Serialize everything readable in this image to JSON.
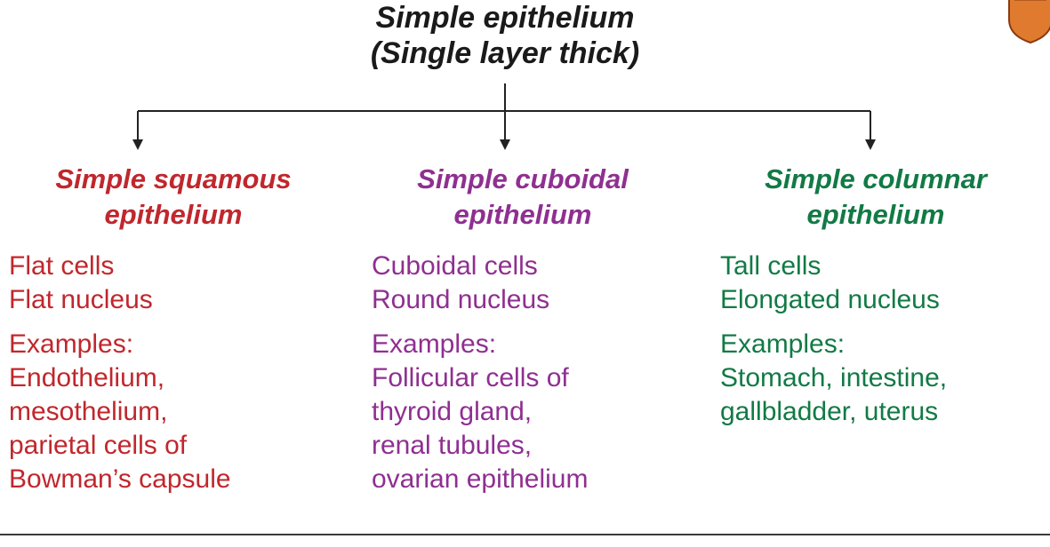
{
  "root": {
    "title_line1": "Simple epithelium",
    "title_line2": "(Single layer thick)"
  },
  "colors": {
    "squamous": "#c0272d",
    "cuboidal": "#8f2f91",
    "columnar": "#127a45",
    "connector": "#222222",
    "badge": "#e07a2e"
  },
  "columns": [
    {
      "heading_line1": "Simple squamous",
      "heading_line2": "epithelium",
      "props": [
        "Flat cells",
        "Flat nucleus"
      ],
      "examples_label": "Examples:",
      "examples": [
        "Endothelium,",
        "mesothelium,",
        "parietal cells of",
        "Bowman’s capsule"
      ]
    },
    {
      "heading_line1": "Simple cuboidal",
      "heading_line2": "epithelium",
      "props": [
        "Cuboidal cells",
        "Round nucleus"
      ],
      "examples_label": "Examples:",
      "examples": [
        "Follicular cells of",
        "thyroid gland,",
        "renal tubules,",
        "ovarian epithelium"
      ]
    },
    {
      "heading_line1": "Simple columnar",
      "heading_line2": "epithelium",
      "props": [
        "Tall cells",
        "Elongated nucleus"
      ],
      "examples_label": "Examples:",
      "examples": [
        "Stomach, intestine,",
        "gallbladder, uterus"
      ]
    }
  ],
  "badge": {
    "icon": "shield-badge-icon"
  }
}
